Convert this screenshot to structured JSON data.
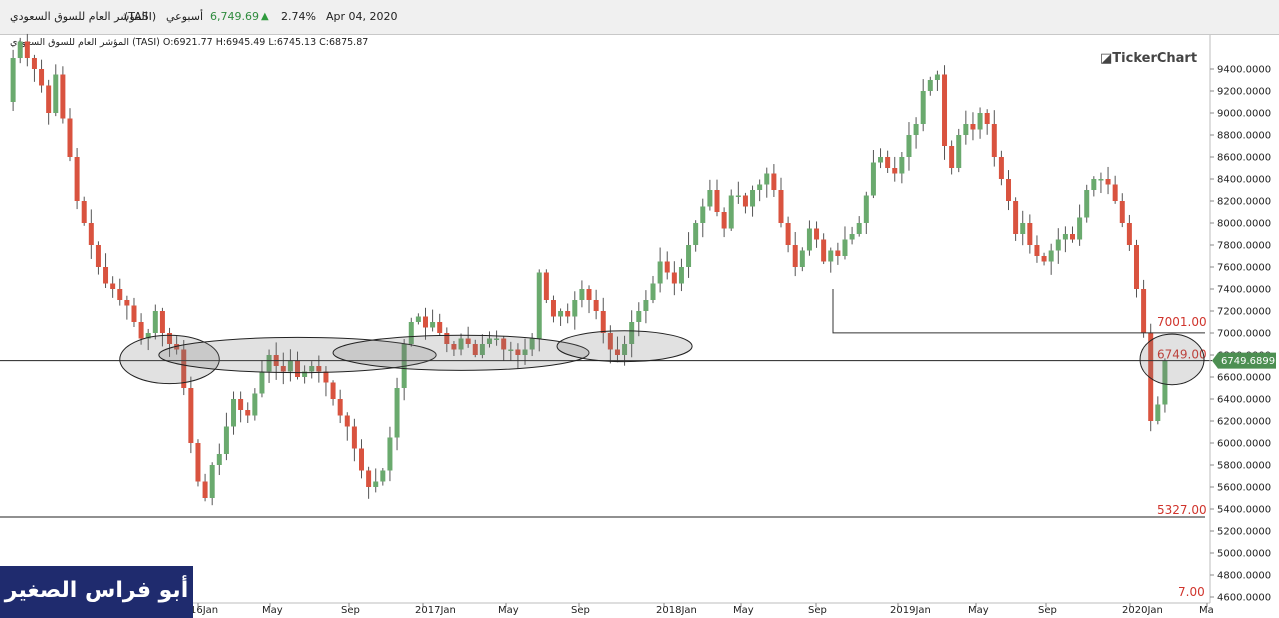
{
  "header": {
    "name": "المؤشر العام للسوق السعودي",
    "symbol": "(TASI)",
    "period": "أسبوعي",
    "price": "6,749.69",
    "change_pct": "2.74%",
    "date": "Apr 04, 2020"
  },
  "ohlc_line": "المؤشر العام للسوق السعودي (TASI)  O:6921.77  H:6945.49  L:6745.13  C:6875.87",
  "brand": "TickerChart",
  "watermark": "أبو فراس الصغير",
  "price_tag": "6749.6899",
  "colors": {
    "up": "#6aaa6e",
    "down": "#d9533f",
    "level_text": "#d0342c",
    "price_tag": "#4d8f52",
    "watermark_bg": "#1f2b6e"
  },
  "chart_data": {
    "type": "candlestick",
    "timeframe": "weekly",
    "ylim": [
      4600,
      9500
    ],
    "y_ticks": [
      "4600.0000",
      "4800.0000",
      "5000.0000",
      "5200.0000",
      "5400.0000",
      "5600.0000",
      "5800.0000",
      "6000.0000",
      "6200.0000",
      "6400.0000",
      "6600.0000",
      "6800.0000",
      "7000.0000",
      "7200.0000",
      "7400.0000",
      "7600.0000",
      "7800.0000",
      "8000.0000",
      "8200.0000",
      "8400.0000",
      "8600.0000",
      "8800.0000",
      "9000.0000",
      "9200.0000",
      "9400.0000"
    ],
    "x_ticks": [
      "16Jan",
      "May",
      "Sep",
      "2017Jan",
      "May",
      "Sep",
      "2018Jan",
      "May",
      "Sep",
      "2019Jan",
      "May",
      "Sep",
      "2020Jan",
      "Ma"
    ],
    "levels": [
      {
        "value": 7001,
        "label": "7001.00"
      },
      {
        "value": 6749,
        "label": "6749.00"
      },
      {
        "value": 5327,
        "label": "5327.00"
      }
    ],
    "extra_label": "7.00",
    "path": [
      9100,
      9500,
      9650,
      9500,
      9400,
      9250,
      9000,
      9350,
      8950,
      8600,
      8200,
      8000,
      7800,
      7600,
      7450,
      7400,
      7300,
      7250,
      7100,
      6950,
      7000,
      7200,
      7000,
      6900,
      6850,
      6500,
      6000,
      5650,
      5500,
      5800,
      5900,
      6150,
      6400,
      6300,
      6250,
      6450,
      6650,
      6800,
      6700,
      6650,
      6750,
      6600,
      6650,
      6700,
      6650,
      6550,
      6400,
      6250,
      6150,
      5950,
      5750,
      5600,
      5650,
      5750,
      6050,
      6500,
      6900,
      7100,
      7150,
      7050,
      7100,
      7000,
      6900,
      6850,
      6950,
      6900,
      6800,
      6900,
      6950,
      6950,
      6850,
      6850,
      6800,
      6850,
      6950,
      7550,
      7300,
      7150,
      7200,
      7150,
      7300,
      7400,
      7300,
      7200,
      7000,
      6850,
      6800,
      6900,
      7100,
      7200,
      7300,
      7450,
      7650,
      7550,
      7450,
      7600,
      7800,
      8000,
      8150,
      8300,
      8100,
      7950,
      8250,
      8250,
      8150,
      8300,
      8350,
      8450,
      8300,
      8000,
      7800,
      7600,
      7750,
      7950,
      7850,
      7650,
      7750,
      7700,
      7850,
      7900,
      8000,
      8250,
      8550,
      8600,
      8500,
      8450,
      8600,
      8800,
      8900,
      9200,
      9300,
      9350,
      8700,
      8500,
      8800,
      8900,
      8850,
      9000,
      8900,
      8600,
      8400,
      8200,
      7900,
      8000,
      7800,
      7700,
      7650,
      7750,
      7850,
      7900,
      7850,
      8050,
      8300,
      8400,
      8400,
      8350,
      8200,
      8000,
      7800,
      7400,
      7000,
      6200,
      6350,
      6750
    ],
    "ellipses": [
      {
        "cx_week": 23,
        "cy": 6760,
        "rx_weeks": 7,
        "ry": 220
      },
      {
        "cx_week": 41,
        "cy": 6800,
        "rx_weeks": 19.5,
        "ry": 160
      },
      {
        "cx_week": 64,
        "cy": 6820,
        "rx_weeks": 18,
        "ry": 160
      },
      {
        "cx_week": 87,
        "cy": 6880,
        "rx_weeks": 9.5,
        "ry": 140
      },
      {
        "cx_week": 164,
        "cy": 6760,
        "rx_weeks": 4.5,
        "ry": 230
      }
    ]
  }
}
